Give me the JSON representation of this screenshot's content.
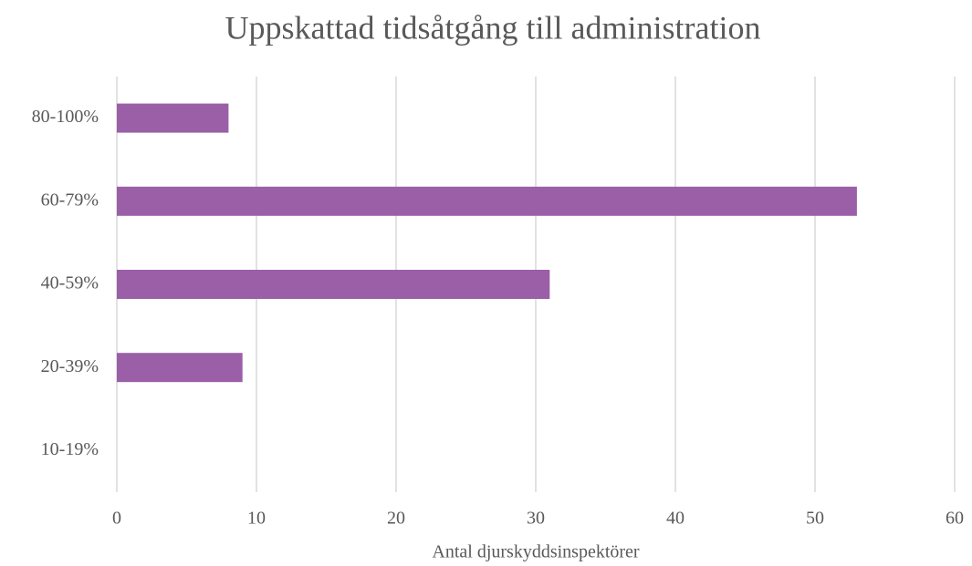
{
  "chart_data": {
    "type": "bar",
    "orientation": "horizontal",
    "title": "Uppskattad tidsåtgång till administration",
    "x_label": "Antal djurskyddsinspektörer",
    "categories": [
      "80-100%",
      "60-79%",
      "40-59%",
      "20-39%",
      "10-19%"
    ],
    "values": [
      8,
      53,
      31,
      9,
      0
    ],
    "color": "#9b5fa8",
    "xlim": [
      0,
      60
    ],
    "xticks": [
      0,
      10,
      20,
      30,
      40,
      50,
      60
    ],
    "grid": true
  }
}
